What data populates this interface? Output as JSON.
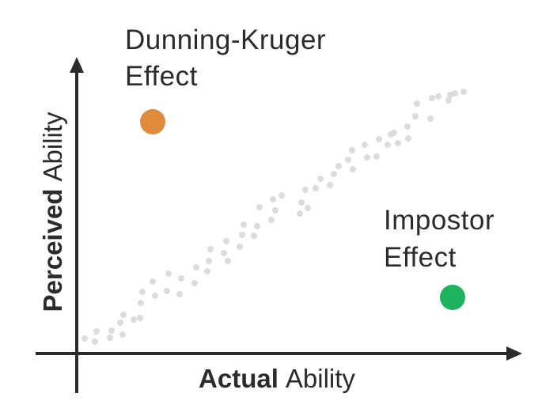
{
  "annotations": [
    {
      "lines": [
        "Dunning-Kruger",
        "Effect"
      ]
    },
    {
      "lines": [
        "Impostor",
        "Effect"
      ]
    }
  ],
  "x_axis": {
    "bold": "Actual",
    "rest": "Ability"
  },
  "y_axis": {
    "bold": "Perceived",
    "rest": "Ability"
  }
}
